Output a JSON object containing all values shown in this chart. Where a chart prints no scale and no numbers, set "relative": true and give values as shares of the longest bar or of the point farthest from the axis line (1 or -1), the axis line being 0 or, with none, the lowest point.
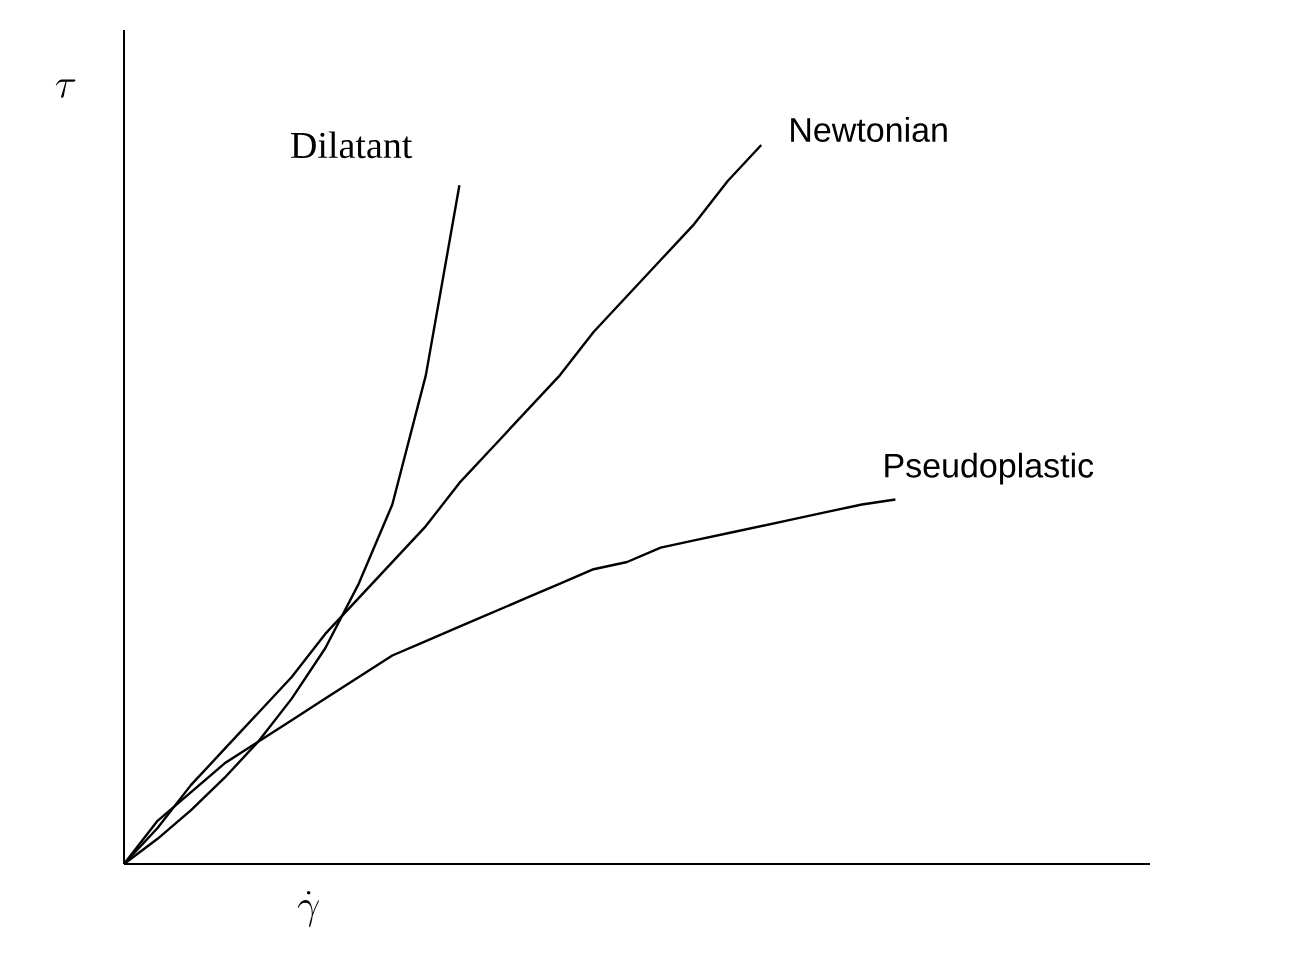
{
  "chart_data": {
    "type": "line",
    "relative": true,
    "xlabel": "\\dot{\\gamma}",
    "ylabel": "\\tau",
    "line_style": "solid",
    "categories": [
      null,
      null,
      null,
      null,
      null,
      null,
      null,
      null,
      null,
      null,
      null,
      null,
      null,
      null,
      null,
      null,
      null,
      null,
      null,
      null,
      null,
      null,
      null,
      null
    ],
    "series": [
      {
        "name": "Dilatant",
        "color": "#000000",
        "values": [
          0,
          0.035,
          0.075,
          0.12,
          0.17,
          0.23,
          0.3,
          0.39,
          0.5,
          0.68,
          0.944,
          null,
          null,
          null,
          null,
          null,
          null,
          null,
          null,
          null,
          null,
          null,
          null,
          null
        ]
      },
      {
        "name": "Newtonian",
        "color": "#000000",
        "values": [
          0,
          0.05,
          0.11,
          0.16,
          0.21,
          0.26,
          0.32,
          0.37,
          0.42,
          0.47,
          0.53,
          0.58,
          0.63,
          0.68,
          0.74,
          0.79,
          0.84,
          0.89,
          0.95,
          1,
          null,
          null,
          null,
          null
        ]
      },
      {
        "name": "Pseudoplastic",
        "color": "#000000",
        "values": [
          0,
          0.06,
          0.1,
          0.14,
          0.17,
          0.2,
          0.23,
          0.26,
          0.29,
          0.31,
          0.33,
          0.35,
          0.37,
          0.39,
          0.41,
          0.42,
          0.44,
          0.45,
          0.46,
          0.47,
          0.48,
          0.49,
          0.5,
          0.507
        ]
      }
    ]
  }
}
